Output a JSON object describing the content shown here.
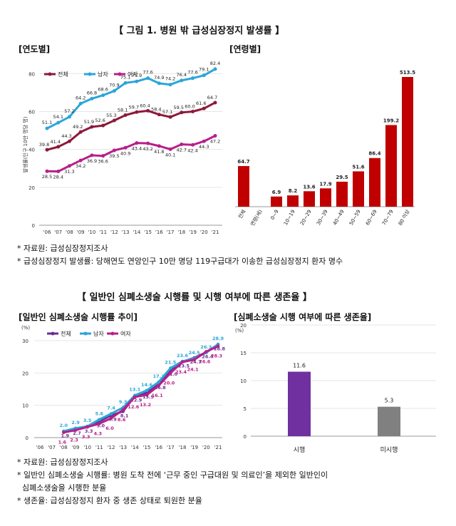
{
  "section1": {
    "title": "【 그림 1. 병원 밖 급성심장정지 발생률 】",
    "notes": [
      "* 자료원: 급성심장정지조사",
      "* 급성심장정지 발생률: 당해연도 연앙인구 10만 명당 119구급대가 이송한 급성심장정지 환자 명수"
    ]
  },
  "section2": {
    "title": "【 일반인 심폐소생술 시행률 및 시행 여부에 따른 생존율 】",
    "notes": [
      "* 자료원: 급성심장정지조사",
      "* 일반인 심폐소생술 시행률: 병원 도착 전에 ‘근무 중인 구급대원 및 의료인’을 제외한 일반인이",
      "  심폐소생술을 시행한 분율",
      "* 생존율: 급성심장정지 환자 중 생존 상태로 퇴원한 분율"
    ]
  },
  "chart_data": [
    {
      "id": "yearly",
      "type": "line",
      "title": "[연도별]",
      "ylabel": "발생률(인구 10만 명당 명)",
      "xlabel": "",
      "ylim": [
        0,
        85
      ],
      "yticks": [
        0,
        20,
        40,
        60,
        80
      ],
      "categories": [
        "'06",
        "'07",
        "'08",
        "'09",
        "'10",
        "'11",
        "'12",
        "'13",
        "'14",
        "'15",
        "'16",
        "'17",
        "'18",
        "'19",
        "'20",
        "'21"
      ],
      "series": [
        {
          "name": "전체",
          "color": "#8b1a3a",
          "values": [
            39.8,
            41.4,
            44.3,
            49.2,
            51.9,
            52.6,
            55.3,
            58.1,
            59.7,
            60.4,
            58.4,
            57.1,
            59.5,
            60.0,
            61.6,
            64.7
          ]
        },
        {
          "name": "남자",
          "color": "#2aa6d8",
          "values": [
            51.1,
            54.1,
            57.2,
            64.2,
            66.8,
            68.6,
            70.9,
            75.1,
            75.9,
            77.6,
            74.9,
            74.2,
            76.4,
            77.6,
            79.1,
            82.4
          ]
        },
        {
          "name": "여자",
          "color": "#b81e8a",
          "values": [
            28.5,
            28.4,
            31.3,
            34.2,
            36.9,
            36.6,
            39.5,
            40.9,
            43.4,
            43.2,
            41.8,
            40.1,
            42.7,
            42.4,
            44.3,
            47.2
          ]
        }
      ]
    },
    {
      "id": "age",
      "type": "bar",
      "title": "[연령별]",
      "color": "#c00000",
      "categories": [
        "전체",
        "연령(세)",
        "0~9",
        "10~19",
        "20~29",
        "30~39",
        "40~49",
        "50~59",
        "60~69",
        "70~79",
        "80 이상"
      ],
      "values": [
        64.7,
        null,
        6.9,
        8.2,
        13.6,
        17.9,
        29.5,
        51.6,
        86.4,
        199.2,
        513.5
      ],
      "value_labels": [
        "64.7",
        "",
        "6.9",
        "8.2",
        "13.6",
        "17.9",
        "29.5",
        "51.6",
        "86.4",
        "199.2",
        "513.5"
      ]
    },
    {
      "id": "cpr_trend",
      "type": "line",
      "title": "[일반인 심폐소생술 시행률 추이]",
      "ylabel": "(%)",
      "ylim": [
        0,
        30
      ],
      "yticks": [
        0,
        10,
        20,
        30
      ],
      "categories": [
        "'06",
        "'07",
        "'08",
        "'09",
        "'10",
        "'11",
        "'12",
        "'13",
        "'14",
        "'15",
        "'16",
        "'17",
        "'18",
        "'19",
        "'20",
        "'21"
      ],
      "series": [
        {
          "name": "전체",
          "color": "#6a2c91",
          "values": [
            null,
            null,
            1.9,
            2.7,
            3.3,
            5.0,
            6.9,
            8.1,
            12.9,
            13.9,
            16.8,
            21.0,
            23.5,
            24.7,
            26.4,
            28.8
          ]
        },
        {
          "name": "남자",
          "color": "#2aa6d8",
          "values": [
            null,
            null,
            2.0,
            2.9,
            3.5,
            5.6,
            7.4,
            9.3,
            13.1,
            14.6,
            17.2,
            21.5,
            23.6,
            24.5,
            26.3,
            28.9
          ]
        },
        {
          "name": "여자",
          "color": "#b81e8a",
          "values": [
            null,
            null,
            1.6,
            2.3,
            3.3,
            4.3,
            6.0,
            8.6,
            12.6,
            13.2,
            16.1,
            20.0,
            23.4,
            24.1,
            26.6,
            28.3
          ]
        }
      ]
    },
    {
      "id": "survival",
      "type": "bar",
      "title": "[심폐소생술 시행 여부에 따른 생존율]",
      "ylabel": "(%)",
      "ylim": [
        0,
        20
      ],
      "yticks": [
        0,
        5,
        10,
        15,
        20
      ],
      "categories": [
        "시행",
        "미시행"
      ],
      "values": [
        11.6,
        5.3
      ],
      "colors": [
        "#7030a0",
        "#808080"
      ]
    }
  ]
}
